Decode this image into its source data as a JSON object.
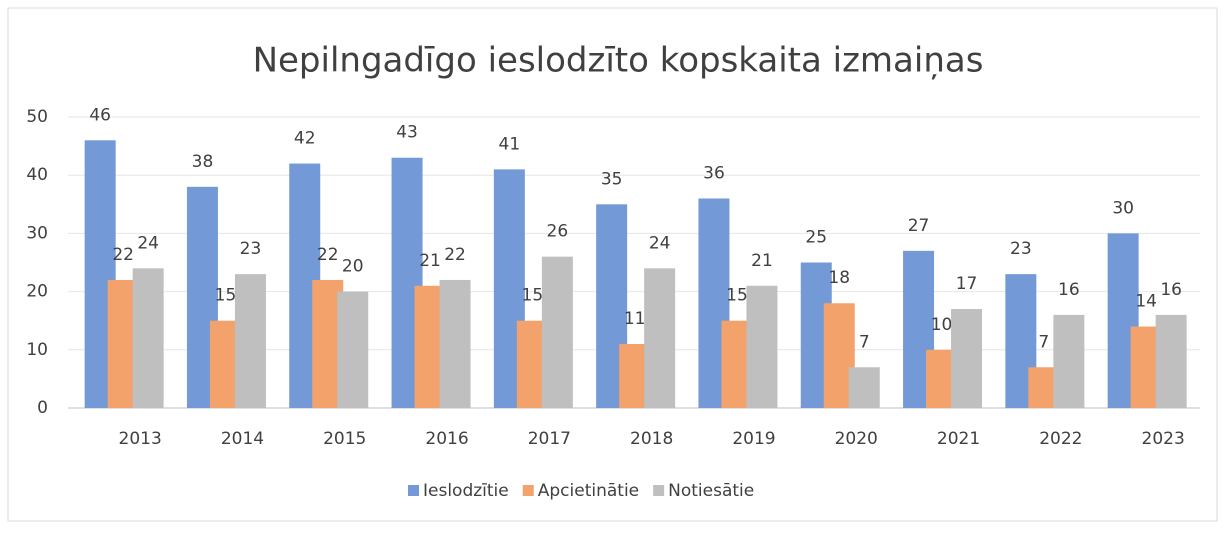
{
  "chart_data": {
    "type": "bar",
    "title": "Nepilngadīgo ieslodzīto kopskaita izmaiņas",
    "categories": [
      "2013",
      "2014",
      "2015",
      "2016",
      "2017",
      "2018",
      "2019",
      "2020",
      "2021",
      "2022",
      "2023"
    ],
    "series": [
      {
        "name": "Ieslodzītie",
        "color": "#7399d6",
        "values": [
          46,
          38,
          42,
          43,
          41,
          35,
          36,
          25,
          27,
          23,
          30
        ]
      },
      {
        "name": "Apcietinātie",
        "color": "#f3a26c",
        "values": [
          22,
          15,
          22,
          21,
          15,
          11,
          15,
          18,
          10,
          7,
          14
        ]
      },
      {
        "name": "Notiesātie",
        "color": "#bfbfbf",
        "values": [
          24,
          23,
          20,
          22,
          26,
          24,
          21,
          7,
          17,
          16,
          16
        ]
      }
    ],
    "ylim": [
      0,
      50
    ],
    "yticks": [
      0,
      10,
      20,
      30,
      40,
      50
    ],
    "grid": true,
    "legend": "bottom"
  }
}
